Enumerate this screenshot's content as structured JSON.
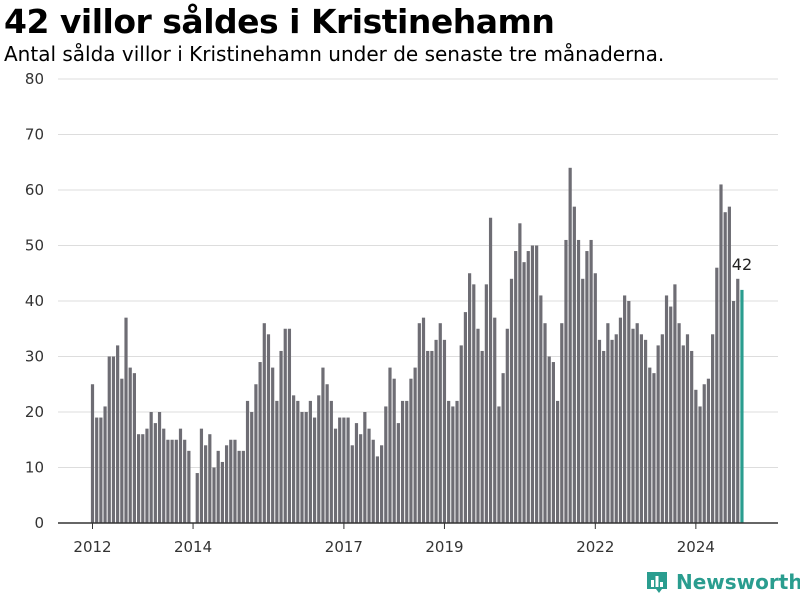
{
  "title": "42 villor såldes i Kristinehamn",
  "subtitle": "Antal sålda villor i Kristinehamn under de senaste tre månaderna.",
  "brand": "Newsworthy",
  "colors": {
    "bar": "#6e6d74",
    "highlight": "#2a9d8f",
    "grid": "#dddddd",
    "axis": "#333333"
  },
  "chart_data": {
    "type": "bar",
    "x_start": "2012-01",
    "x_step": "month",
    "ylim": [
      0,
      80
    ],
    "yticks": [
      0,
      10,
      20,
      30,
      40,
      50,
      60,
      70,
      80
    ],
    "xticks": [
      {
        "label": "2012",
        "at": "2012-01"
      },
      {
        "label": "2014",
        "at": "2014-01"
      },
      {
        "label": "2017",
        "at": "2017-01"
      },
      {
        "label": "2019",
        "at": "2019-01"
      },
      {
        "label": "2022",
        "at": "2022-01"
      },
      {
        "label": "2024",
        "at": "2024-01"
      }
    ],
    "values": [
      25,
      19,
      19,
      21,
      30,
      30,
      32,
      26,
      37,
      28,
      27,
      16,
      16,
      17,
      20,
      18,
      20,
      17,
      15,
      15,
      15,
      17,
      15,
      13,
      0,
      9,
      17,
      14,
      16,
      10,
      13,
      11,
      14,
      15,
      15,
      13,
      13,
      22,
      20,
      25,
      29,
      36,
      34,
      28,
      22,
      31,
      35,
      35,
      23,
      22,
      20,
      20,
      22,
      19,
      23,
      28,
      25,
      22,
      17,
      19,
      19,
      19,
      14,
      18,
      16,
      20,
      17,
      15,
      12,
      14,
      21,
      28,
      26,
      18,
      22,
      22,
      26,
      28,
      36,
      37,
      31,
      31,
      33,
      36,
      33,
      22,
      21,
      22,
      32,
      38,
      45,
      43,
      35,
      31,
      43,
      55,
      37,
      21,
      27,
      35,
      44,
      49,
      54,
      47,
      49,
      50,
      50,
      41,
      36,
      30,
      29,
      22,
      36,
      51,
      64,
      57,
      51,
      44,
      49,
      51,
      45,
      33,
      31,
      36,
      33,
      34,
      37,
      41,
      40,
      35,
      36,
      34,
      33,
      28,
      27,
      32,
      34,
      41,
      39,
      43,
      36,
      32,
      34,
      31,
      24,
      21,
      25,
      26,
      34,
      46,
      61,
      56,
      57,
      40,
      44,
      42
    ],
    "highlight_label": "42"
  }
}
